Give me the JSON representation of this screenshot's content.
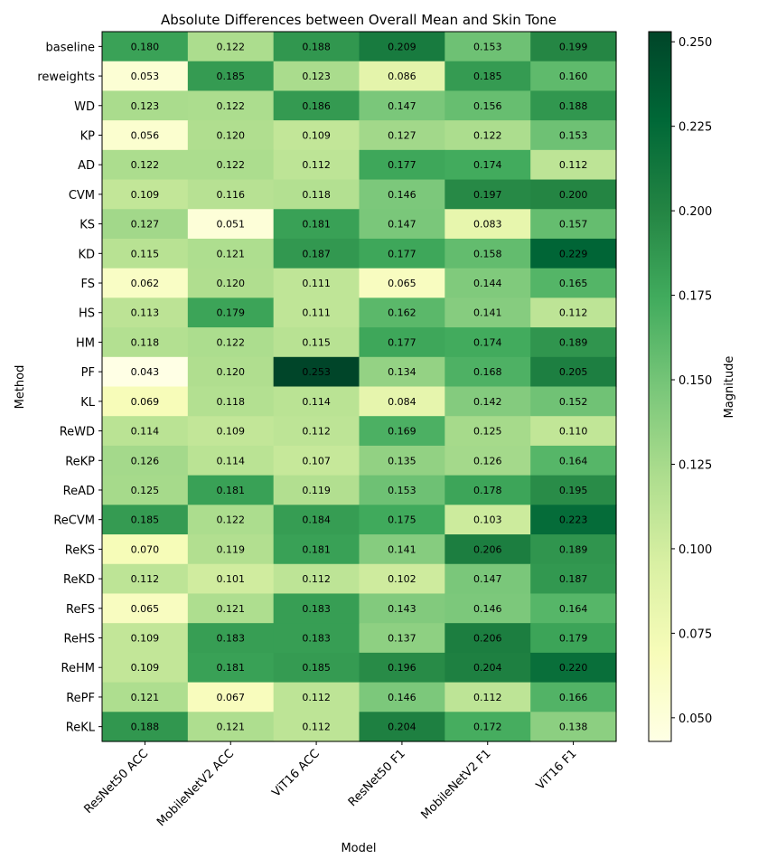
{
  "chart_data": {
    "type": "heatmap",
    "title": "Absolute Differences between Overall Mean and Skin Tone",
    "xlabel": "Model",
    "ylabel": "Method",
    "colorbar_label": "Magnitude",
    "columns": [
      "ResNet50 ACC",
      "MobileNetV2 ACC",
      "ViT16 ACC",
      "ResNet50 F1",
      "MobileNetV2 F1",
      "ViT16 F1"
    ],
    "rows": [
      "baseline",
      "reweights",
      "WD",
      "KP",
      "AD",
      "CVM",
      "KS",
      "KD",
      "FS",
      "HS",
      "HM",
      "PF",
      "KL",
      "ReWD",
      "ReKP",
      "ReAD",
      "ReCVM",
      "ReKS",
      "ReKD",
      "ReFS",
      "ReHS",
      "ReHM",
      "RePF",
      "ReKL"
    ],
    "values": [
      [
        "0.180",
        "0.122",
        "0.188",
        "0.209",
        "0.153",
        "0.199"
      ],
      [
        "0.053",
        "0.185",
        "0.123",
        "0.086",
        "0.185",
        "0.160"
      ],
      [
        "0.123",
        "0.122",
        "0.186",
        "0.147",
        "0.156",
        "0.188"
      ],
      [
        "0.056",
        "0.120",
        "0.109",
        "0.127",
        "0.122",
        "0.153"
      ],
      [
        "0.122",
        "0.122",
        "0.112",
        "0.177",
        "0.174",
        "0.112"
      ],
      [
        "0.109",
        "0.116",
        "0.118",
        "0.146",
        "0.197",
        "0.200"
      ],
      [
        "0.127",
        "0.051",
        "0.181",
        "0.147",
        "0.083",
        "0.157"
      ],
      [
        "0.115",
        "0.121",
        "0.187",
        "0.177",
        "0.158",
        "0.229"
      ],
      [
        "0.062",
        "0.120",
        "0.111",
        "0.065",
        "0.144",
        "0.165"
      ],
      [
        "0.113",
        "0.179",
        "0.111",
        "0.162",
        "0.141",
        "0.112"
      ],
      [
        "0.118",
        "0.122",
        "0.115",
        "0.177",
        "0.174",
        "0.189"
      ],
      [
        "0.043",
        "0.120",
        "0.253",
        "0.134",
        "0.168",
        "0.205"
      ],
      [
        "0.069",
        "0.118",
        "0.114",
        "0.084",
        "0.142",
        "0.152"
      ],
      [
        "0.114",
        "0.109",
        "0.112",
        "0.169",
        "0.125",
        "0.110"
      ],
      [
        "0.126",
        "0.114",
        "0.107",
        "0.135",
        "0.126",
        "0.164"
      ],
      [
        "0.125",
        "0.181",
        "0.119",
        "0.153",
        "0.178",
        "0.195"
      ],
      [
        "0.185",
        "0.122",
        "0.184",
        "0.175",
        "0.103",
        "0.223"
      ],
      [
        "0.070",
        "0.119",
        "0.181",
        "0.141",
        "0.206",
        "0.189"
      ],
      [
        "0.112",
        "0.101",
        "0.112",
        "0.102",
        "0.147",
        "0.187"
      ],
      [
        "0.065",
        "0.121",
        "0.183",
        "0.143",
        "0.146",
        "0.164"
      ],
      [
        "0.109",
        "0.183",
        "0.183",
        "0.137",
        "0.206",
        "0.179"
      ],
      [
        "0.109",
        "0.181",
        "0.185",
        "0.196",
        "0.204",
        "0.220"
      ],
      [
        "0.121",
        "0.067",
        "0.112",
        "0.146",
        "0.112",
        "0.166"
      ],
      [
        "0.188",
        "0.121",
        "0.112",
        "0.204",
        "0.172",
        "0.138"
      ]
    ],
    "vmin": 0.043,
    "vmax": 0.253,
    "colorbar_ticks": [
      "0.050",
      "0.075",
      "0.100",
      "0.125",
      "0.150",
      "0.175",
      "0.200",
      "0.225",
      "0.250"
    ],
    "colormap": [
      "#ffffe5",
      "#f7fcb9",
      "#d9f0a3",
      "#addd8e",
      "#78c679",
      "#41ab5d",
      "#238443",
      "#006837",
      "#004529"
    ]
  }
}
